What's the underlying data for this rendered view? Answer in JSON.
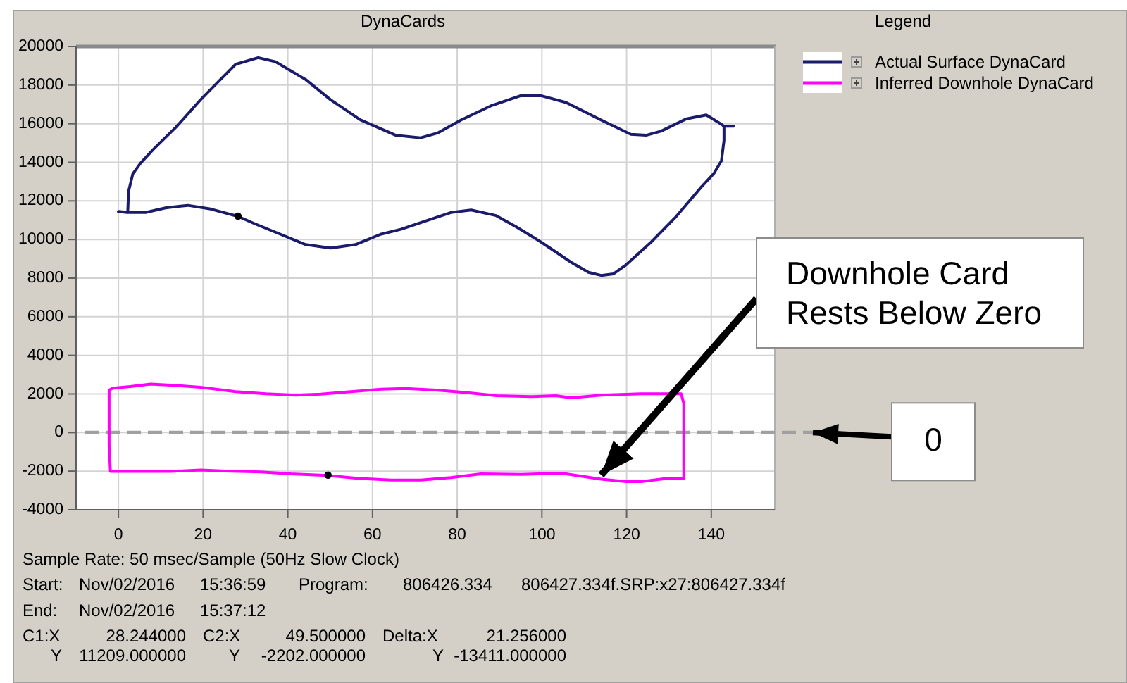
{
  "chart_data": {
    "type": "line",
    "title": "DynaCards",
    "legend_title": "Legend",
    "legend": "top right",
    "grid": true,
    "xlim": [
      -10,
      155
    ],
    "xticks": [
      0,
      20,
      40,
      60,
      80,
      100,
      120,
      140
    ],
    "ylim": [
      -4000,
      20000
    ],
    "yticks": [
      -4000,
      -2000,
      0,
      2000,
      4000,
      6000,
      8000,
      10000,
      12000,
      14000,
      16000,
      18000,
      20000
    ],
    "series": [
      {
        "name": "Actual Surface DynaCard",
        "color": "#1b1b6b",
        "x": [
          0,
          2.2,
          2.4,
          3.4,
          5.2,
          8.2,
          13.5,
          19.4,
          24.1,
          27.7,
          33,
          37.1,
          44.2,
          50.1,
          57.2,
          65.5,
          71.4,
          75.5,
          80.9,
          87.9,
          95,
          99.8,
          105.7,
          114,
          121,
          124.6,
          128.1,
          134,
          138.8,
          142.4,
          143,
          145.3
        ],
        "values": [
          11450,
          11420,
          12500,
          13400,
          13950,
          14660,
          15800,
          17240,
          18290,
          19080,
          19420,
          19210,
          18290,
          17240,
          16190,
          15400,
          15270,
          15530,
          16190,
          16920,
          17450,
          17450,
          17100,
          16190,
          15450,
          15400,
          15610,
          16240,
          16450,
          15970,
          15870,
          15870
        ]
      },
      {
        "color": "#1b1b6b",
        "x": [
          143,
          143,
          142.4,
          140.6,
          137.6,
          131.7,
          125.8,
          119.9,
          116.9,
          114,
          111,
          106.9,
          99.8,
          93.9,
          89.2,
          83.3,
          78.5,
          75,
          66.7,
          61.9,
          56,
          50.1,
          44.2,
          38.3,
          32.4,
          28.2,
          21.8,
          16.4,
          11.1,
          6.4,
          2.2,
          0
        ],
        "values": [
          15870,
          15130,
          14080,
          13420,
          12710,
          11190,
          9870,
          8690,
          8220,
          8140,
          8300,
          8820,
          9870,
          10660,
          11240,
          11530,
          11400,
          11140,
          10530,
          10270,
          9740,
          9560,
          9740,
          10270,
          10800,
          11200,
          11580,
          11770,
          11640,
          11400,
          11400,
          11450
        ]
      },
      {
        "name": "Inferred Downhole DynaCard",
        "color": "#ff00ff",
        "x": [
          -2.2,
          -1.3,
          2.8,
          7.6,
          12.3,
          19.4,
          27.7,
          34.8,
          41.9,
          47.8,
          54.9,
          62,
          67.9,
          75,
          82.1,
          89.2,
          97.4,
          103.3,
          106.9,
          114,
          123.4,
          132.9,
          133.5,
          133.5,
          133.5,
          133.5
        ],
        "values": [
          2200,
          2300,
          2380,
          2510,
          2460,
          2350,
          2120,
          2010,
          1940,
          1990,
          2120,
          2250,
          2280,
          2200,
          2070,
          1910,
          1860,
          1910,
          1800,
          1940,
          2010,
          2010,
          1500,
          0,
          -2200,
          -2380
        ]
      },
      {
        "color": "#ff00ff",
        "x": [
          133.5,
          129.4,
          123.4,
          119.9,
          114,
          105.7,
          102.2,
          95.1,
          85.6,
          78.5,
          71.4,
          64.3,
          57.2,
          49.4,
          40.7,
          33.6,
          25.3,
          19.4,
          12.3,
          5.2,
          -1.9,
          -2.2,
          -2.2,
          -2.2
        ],
        "values": [
          -2380,
          -2380,
          -2540,
          -2540,
          -2410,
          -2140,
          -2120,
          -2170,
          -2140,
          -2330,
          -2460,
          -2460,
          -2380,
          -2220,
          -2140,
          -2040,
          -1990,
          -1940,
          -2010,
          -2010,
          -2010,
          -630,
          1460,
          2200
        ]
      },
      {
        "type": "scatter",
        "color": "#000000",
        "marker": "circle",
        "x": [
          28.244,
          49.5
        ],
        "values": [
          11209,
          -2202
        ]
      }
    ],
    "ref_lines": [
      {
        "axis": "y",
        "value": 0,
        "color": "#a0a0a0",
        "line_style": "dashed"
      }
    ],
    "annotations": [
      "Sample Rate: 50 msec/Sample (50Hz Slow Clock)",
      "Start:",
      "Nov/02/2016",
      "15:36:59",
      "Program:",
      "806426.334",
      "806427.334f.SRP:x27:806427.334f",
      "End:",
      "Nov/02/2016",
      "15:37:12",
      "C1:X",
      "28.244000",
      "C2:X",
      "49.500000",
      "Delta:X",
      "21.256000",
      "Y",
      "11209.000000",
      "Y",
      "-2202.000000",
      "Y",
      "-13411.000000",
      "0",
      {
        "text": "Downhole Card\nRests Below Zero",
        "x": 114,
        "y": -2200
      }
    ]
  }
}
